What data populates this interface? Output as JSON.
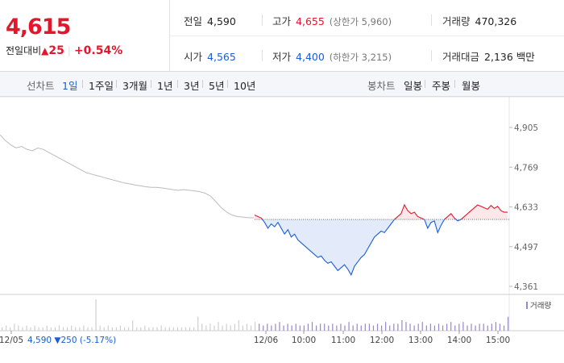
{
  "summary": {
    "price": "4,615",
    "change_label": "전일대비",
    "change_arrow": "▲",
    "change_value": "25",
    "change_pct": "+0.54%",
    "prev_label": "전일",
    "prev_value": "4,590",
    "high_label": "고가",
    "high_value": "4,655",
    "upper_limit_text": "(상한가 5,960)",
    "volume_label": "거래량",
    "volume_value": "470,326",
    "open_label": "시가",
    "open_value": "4,565",
    "low_label": "저가",
    "low_value": "4,400",
    "lower_limit_text": "(하한가 3,215)",
    "amount_label": "거래대금",
    "amount_value": "2,136",
    "amount_unit": "백만"
  },
  "toolbar": {
    "line_label": "선차트",
    "line_periods": [
      "1일",
      "1주일",
      "3개월",
      "1년",
      "3년",
      "5년",
      "10년"
    ],
    "active_period": "1일",
    "candle_label": "봉차트",
    "candle_periods": [
      "일봉",
      "주봉",
      "월봉"
    ]
  },
  "chart_data": {
    "type": "line",
    "title": "",
    "y_ticks": [
      "4,905",
      "4,769",
      "4,633",
      "4,497",
      "4,361"
    ],
    "y_tick_values": [
      4905,
      4769,
      4633,
      4497,
      4361
    ],
    "ylim": [
      4361,
      4905
    ],
    "baseline": 4590,
    "x_ticks": [
      "12/05",
      "12/06",
      "10:00",
      "11:00",
      "12:00",
      "13:00",
      "14:00",
      "15:00"
    ],
    "prev_day_note": {
      "date": "12/05",
      "close": "4,590",
      "change": "▼250",
      "pct": "(-5.17%)"
    },
    "volume_legend": "거래량",
    "series": [
      {
        "segment": "previous_day",
        "color": "#bbbbbb",
        "values": [
          4880,
          4860,
          4845,
          4835,
          4840,
          4830,
          4825,
          4835,
          4830,
          4820,
          4810,
          4800,
          4790,
          4780,
          4770,
          4760,
          4750,
          4745,
          4740,
          4735,
          4730,
          4725,
          4720,
          4715,
          4712,
          4708,
          4705,
          4702,
          4700,
          4700,
          4698,
          4695,
          4692,
          4690,
          4692,
          4690,
          4688,
          4685,
          4680,
          4670,
          4650,
          4630,
          4615,
          4605,
          4600,
          4598,
          4596,
          4596
        ]
      },
      {
        "segment": "today",
        "colors": {
          "above": "#e5162c",
          "below": "#1a5dd6"
        },
        "values": [
          4605,
          4600,
          4595,
          4580,
          4560,
          4575,
          4565,
          4580,
          4560,
          4540,
          4555,
          4530,
          4540,
          4520,
          4510,
          4500,
          4490,
          4480,
          4470,
          4460,
          4465,
          4450,
          4440,
          4445,
          4430,
          4415,
          4425,
          4435,
          4420,
          4400,
          4430,
          4445,
          4460,
          4470,
          4490,
          4510,
          4530,
          4540,
          4550,
          4545,
          4560,
          4575,
          4590,
          4600,
          4610,
          4640,
          4620,
          4610,
          4615,
          4600,
          4595,
          4590,
          4560,
          4580,
          4585,
          4545,
          4570,
          4590,
          4600,
          4610,
          4595,
          4585,
          4590,
          4600,
          4610,
          4620,
          4630,
          4640,
          4635,
          4630,
          4625,
          4638,
          4628,
          4635,
          4620,
          4615,
          4615
        ]
      }
    ],
    "volume_values": [
      2,
      3,
      2,
      4,
      3,
      2,
      3,
      2,
      3,
      2,
      2,
      3,
      2,
      2,
      3,
      2,
      2,
      3,
      2,
      2,
      3,
      2,
      2,
      18,
      3,
      2,
      3,
      2,
      2,
      3,
      2,
      2,
      6,
      2,
      2,
      3,
      2,
      2,
      2,
      3,
      2,
      2,
      2,
      2,
      2,
      2,
      2,
      2,
      8,
      4,
      3,
      4,
      3,
      5,
      3,
      4,
      3,
      4,
      6,
      3,
      4,
      3,
      5,
      4,
      3,
      4,
      3,
      4,
      5,
      3,
      4,
      3,
      4,
      3,
      3,
      4,
      5,
      3,
      4,
      4,
      3,
      4,
      3,
      4,
      3,
      5,
      3,
      4,
      3,
      4,
      4,
      3,
      4,
      3,
      5,
      3,
      4,
      4,
      6,
      5,
      4,
      3,
      4,
      5,
      3,
      4,
      3,
      4,
      3,
      4,
      5,
      3,
      4,
      5,
      3,
      4,
      3,
      4,
      4,
      3,
      4,
      5,
      4,
      3,
      8
    ]
  }
}
